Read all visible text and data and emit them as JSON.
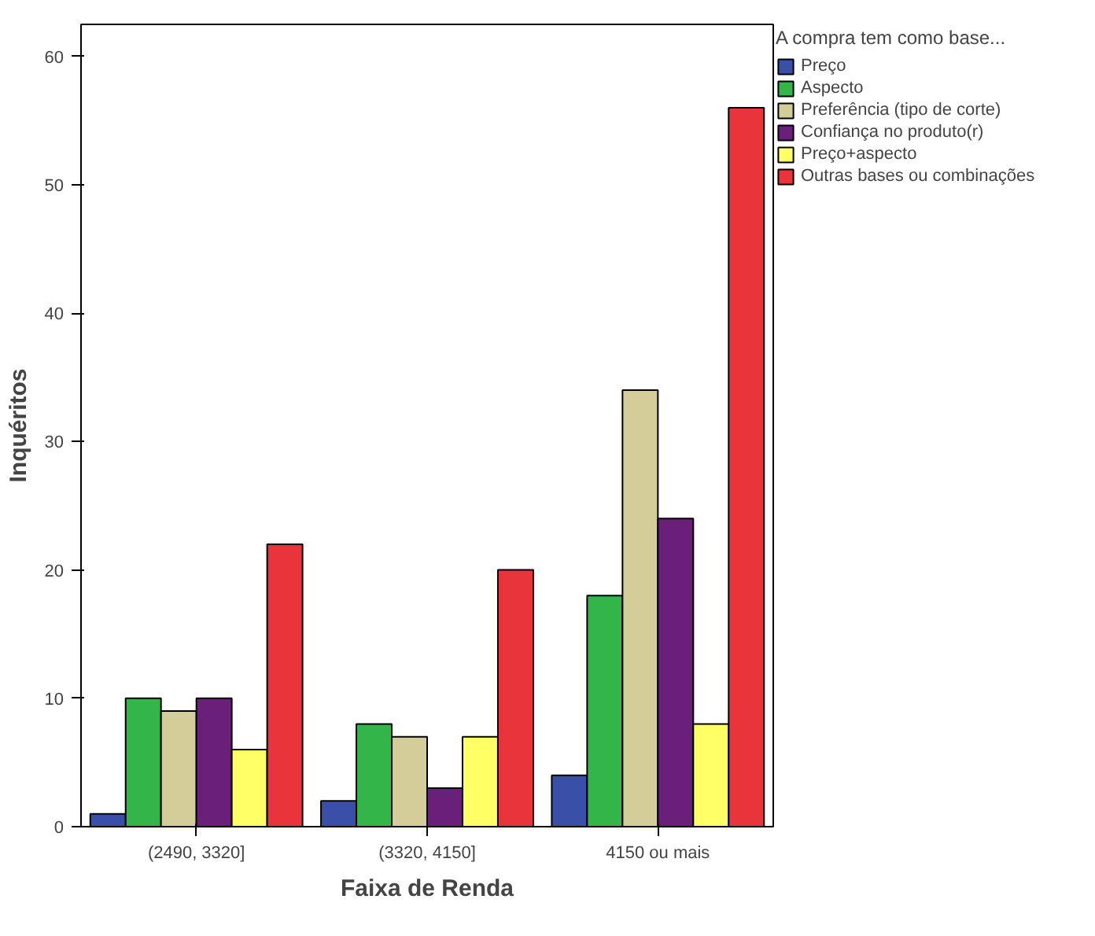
{
  "chart_data": {
    "type": "bar",
    "xlabel": "Faixa de Renda",
    "ylabel": "Inquéritos",
    "legend_title": "A compra tem como base...",
    "categories": [
      "(2490, 3320]",
      "(3320, 4150]",
      "4150 ou mais"
    ],
    "series": [
      {
        "name": "Preço",
        "color": "#3a4fa8",
        "values": [
          1,
          2,
          4
        ]
      },
      {
        "name": "Aspecto",
        "color": "#33b54a",
        "values": [
          10,
          8,
          18
        ]
      },
      {
        "name": "Preferência (tipo de corte)",
        "color": "#d4cc99",
        "values": [
          9,
          7,
          34
        ]
      },
      {
        "name": "Confiança no produto(r)",
        "color": "#6a1f7a",
        "values": [
          10,
          3,
          24
        ]
      },
      {
        "name": "Preço+aspecto",
        "color": "#ffff66",
        "values": [
          6,
          7,
          8
        ]
      },
      {
        "name": "Outras bases ou combinações",
        "color": "#e8343a",
        "values": [
          22,
          20,
          56
        ]
      }
    ],
    "ylim": [
      0,
      62.5
    ],
    "yticks": [
      0,
      10,
      20,
      30,
      40,
      50,
      60
    ],
    "grid": false,
    "legend": "right"
  }
}
